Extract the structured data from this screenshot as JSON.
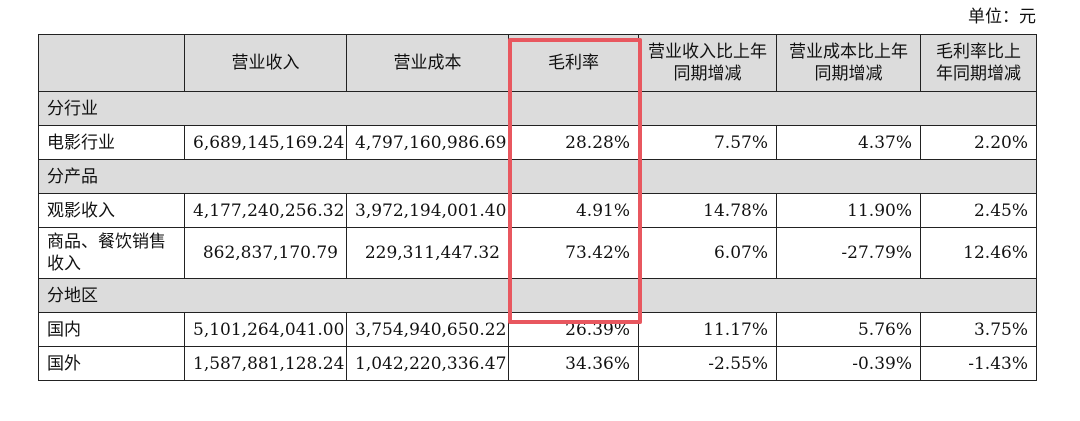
{
  "unit_label": "单位：元",
  "highlight_color": "#e8575f",
  "headers": [
    "",
    "营业收入",
    "营业成本",
    "毛利率",
    "营业收入比上年同期增减",
    "营业成本比上年同期增减",
    "毛利率比上年同期增减"
  ],
  "rows": [
    {
      "type": "section",
      "label": "分行业"
    },
    {
      "type": "data",
      "label": "电影行业",
      "cells": [
        "6,689,145,169.24",
        "4,797,160,986.69",
        "28.28%",
        "7.57%",
        "4.37%",
        "2.20%"
      ]
    },
    {
      "type": "section",
      "label": "分产品"
    },
    {
      "type": "data",
      "label": "观影收入",
      "cells": [
        "4,177,240,256.32",
        "3,972,194,001.40",
        "4.91%",
        "14.78%",
        "11.90%",
        "2.45%"
      ]
    },
    {
      "type": "data",
      "label": "商品、餐饮销售收入",
      "cells": [
        "862,837,170.79",
        "229,311,447.32",
        "73.42%",
        "6.07%",
        "-27.79%",
        "12.46%"
      ],
      "tall": true
    },
    {
      "type": "section",
      "label": "分地区"
    },
    {
      "type": "data",
      "label": "国内",
      "cells": [
        "5,101,264,041.00",
        "3,754,940,650.22",
        "26.39%",
        "11.17%",
        "5.76%",
        "3.75%"
      ]
    },
    {
      "type": "data",
      "label": "国外",
      "cells": [
        "1,587,881,128.24",
        "1,042,220,336.47",
        "34.36%",
        "-2.55%",
        "-0.39%",
        "-1.43%"
      ]
    }
  ]
}
